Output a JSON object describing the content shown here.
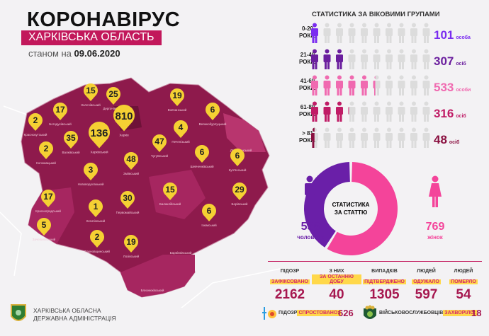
{
  "header": {
    "title": "КОРОНАВІРУС",
    "region": "ХАРКІВСЬКА ОБЛАСТЬ",
    "date_prefix": "станом на",
    "date": "09.06.2020"
  },
  "map": {
    "pin_color": "#f5d033",
    "region_color": "#8e1a4c",
    "districts": [
      {
        "name": "Краснокутський",
        "cases": 2
      },
      {
        "name": "Богодухівський",
        "cases": 17
      },
      {
        "name": "Золочівський",
        "cases": 15
      },
      {
        "name": "Дергачівський",
        "cases": 25
      },
      {
        "name": "Харків",
        "cases": 810
      },
      {
        "name": "Харківський",
        "cases": 136
      },
      {
        "name": "Валківський",
        "cases": 35
      },
      {
        "name": "Коломацький",
        "cases": 2
      },
      {
        "name": "Вовчанський",
        "cases": 19
      },
      {
        "name": "Великобурлуцький",
        "cases": 6
      },
      {
        "name": "Печенізький",
        "cases": 4
      },
      {
        "name": "Чугуївський",
        "cases": 47
      },
      {
        "name": "Дворічанський",
        "cases": null
      },
      {
        "name": "Зміївський",
        "cases": 48
      },
      {
        "name": "Нововодолазький",
        "cases": 3
      },
      {
        "name": "Шевченківський",
        "cases": 6
      },
      {
        "name": "Куп'янський",
        "cases": 6
      },
      {
        "name": "Красноградський",
        "cases": 17
      },
      {
        "name": "Кегичівський",
        "cases": 1
      },
      {
        "name": "Первомайський",
        "cases": 30
      },
      {
        "name": "Балаклійський",
        "cases": 15
      },
      {
        "name": "Борівський",
        "cases": 29
      },
      {
        "name": "Ізюмський",
        "cases": 6
      },
      {
        "name": "Зачепилівський",
        "cases": 5
      },
      {
        "name": "Сахновщинський",
        "cases": 2
      },
      {
        "name": "Лозівський",
        "cases": 19
      },
      {
        "name": "Барвінківський",
        "cases": null
      },
      {
        "name": "Близнюківський",
        "cases": null
      }
    ]
  },
  "age": {
    "title": "СТАТИСТИКА ЗА ВІКОВИМИ ГРУПАМИ",
    "per_icon": 100,
    "icons_per_row": 10,
    "groups": [
      {
        "range": "0-20",
        "unit_label": "РОКІВ",
        "value": 101,
        "suffix": "особа",
        "color": "#7a2cf0"
      },
      {
        "range": "21-40",
        "unit_label": "РОКІВ",
        "value": 307,
        "suffix": "осіб",
        "color": "#6b1f9e"
      },
      {
        "range": "41-60",
        "unit_label": "РОКІВ",
        "value": 533,
        "suffix": "особи",
        "color": "#f06ab0"
      },
      {
        "range": "61-80",
        "unit_label": "РОКІВ",
        "value": 316,
        "suffix": "осіб",
        "color": "#c01c66"
      },
      {
        "range": "> 81",
        "unit_label": "РОКІВ",
        "value": 48,
        "suffix": "осіб",
        "color": "#8a1040"
      }
    ]
  },
  "gender": {
    "title_line1": "СТАТИСТИКА",
    "title_line2": "ЗА СТАТТЮ",
    "male": {
      "value": 536,
      "label": "чоловіків",
      "color": "#6a1fa8"
    },
    "female": {
      "value": 769,
      "label": "жінок",
      "color": "#f4449a"
    }
  },
  "stats": [
    {
      "line1": "ПІДОЗР",
      "line2": "ЗАФІКСОВАНО",
      "value": "2162"
    },
    {
      "line1": "З НИХ",
      "line2": "ЗА ОСТАННЮ ДОБУ",
      "value": "40"
    },
    {
      "line1": "ВИПАДКІВ",
      "line2": "ПІДТВЕРДЖЕНО",
      "value": "1305"
    },
    {
      "line1": "ЛЮДЕЙ",
      "line2": "ОДУЖАЛО",
      "value": "597"
    },
    {
      "line1": "ЛЮДЕЙ",
      "line2": "ПОМЕРЛО",
      "value": "54"
    }
  ],
  "footer": {
    "refuted_label": "ПІДОЗР",
    "refuted_hl": "СПРОСТОВАНО:",
    "refuted_value": "626",
    "military_label": "ВІЙСЬКОВОСЛУЖБОВЦІВ",
    "military_hl": "ЗАХВОРІЛО:",
    "military_value": "18",
    "org_line1": "ХАРКІВСЬКА ОБЛАСНА",
    "org_line2": "ДЕРЖАВНА АДМІНІСТРАЦІЯ"
  }
}
